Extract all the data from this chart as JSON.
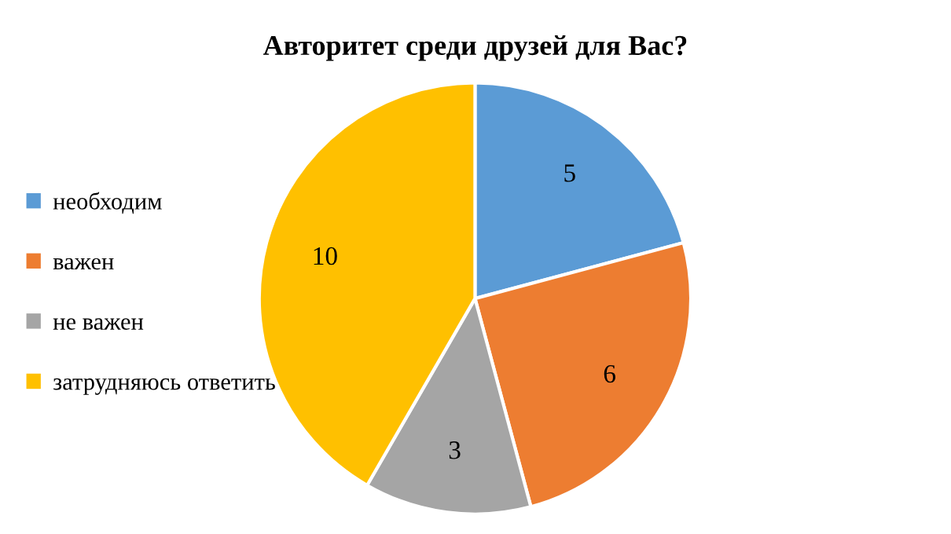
{
  "chart_data": {
    "type": "pie",
    "title": "Авторитет среди друзей для Вас?",
    "categories": [
      "необходим",
      "важен",
      "не важен",
      "затрудняюсь ответить"
    ],
    "values": [
      5,
      6,
      3,
      10
    ],
    "colors": [
      "#5b9bd5",
      "#ed7d31",
      "#a5a5a5",
      "#ffc000"
    ],
    "data_labels": true,
    "legend": "left"
  }
}
